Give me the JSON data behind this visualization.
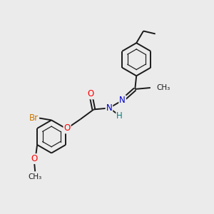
{
  "bg_color": "#ebebeb",
  "bond_color": "#1a1a1a",
  "bond_width": 1.4,
  "atom_colors": {
    "O": "#ff0000",
    "N": "#0000cc",
    "Br": "#cc7700",
    "H": "#008080",
    "C": "#1a1a1a"
  },
  "font_size": 8.5,
  "small_font": 7.5
}
